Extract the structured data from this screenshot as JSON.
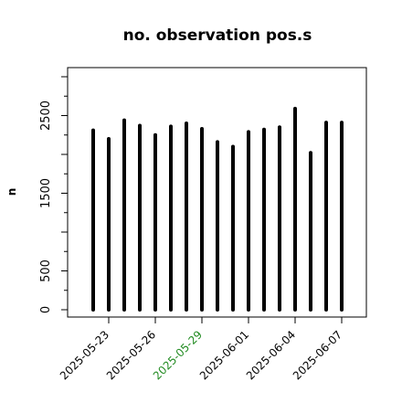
{
  "chart_data": {
    "type": "bar",
    "title": "no. observation pos.s",
    "xlabel": "",
    "ylabel": "n",
    "ylim": [
      0,
      3000
    ],
    "yticks": [
      0,
      500,
      1500,
      2500
    ],
    "x": [
      "2025-05-22",
      "2025-05-23",
      "2025-05-24",
      "2025-05-25",
      "2025-05-26",
      "2025-05-27",
      "2025-05-28",
      "2025-05-29",
      "2025-05-30",
      "2025-05-31",
      "2025-06-01",
      "2025-06-02",
      "2025-06-03",
      "2025-06-04",
      "2025-06-05",
      "2025-06-06",
      "2025-06-07"
    ],
    "values": [
      2310,
      2200,
      2440,
      2370,
      2250,
      2360,
      2400,
      2330,
      2160,
      2100,
      2290,
      2320,
      2350,
      2590,
      2020,
      2410,
      2410
    ],
    "xtick_labels": [
      {
        "label": "2025-05-23",
        "color": "#000000"
      },
      {
        "label": "2025-05-26",
        "color": "#000000"
      },
      {
        "label": "2025-05-29",
        "color": "#228B22"
      },
      {
        "label": "2025-06-01",
        "color": "#000000"
      },
      {
        "label": "2025-06-04",
        "color": "#000000"
      },
      {
        "label": "2025-06-07",
        "color": "#000000"
      }
    ],
    "grid": false,
    "bar_color": "#000000"
  }
}
